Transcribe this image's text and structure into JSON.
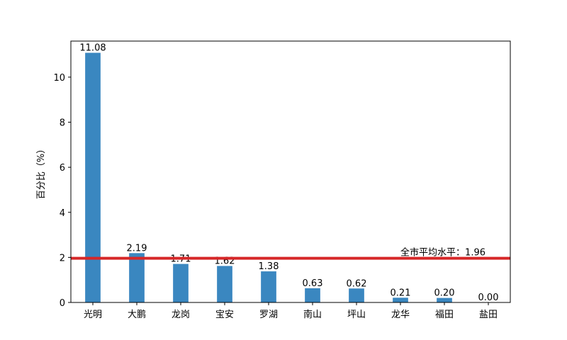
{
  "chart_data": {
    "type": "bar",
    "title": "",
    "xlabel": "",
    "ylabel": "百分比（%）",
    "categories": [
      "光明",
      "大鹏",
      "龙岗",
      "宝安",
      "罗湖",
      "南山",
      "坪山",
      "龙华",
      "福田",
      "盐田"
    ],
    "values": [
      11.08,
      2.19,
      1.71,
      1.62,
      1.38,
      0.63,
      0.62,
      0.21,
      0.2,
      0.0
    ],
    "value_labels": [
      "11.08",
      "2.19",
      "1.71",
      "1.62",
      "1.38",
      "0.63",
      "0.62",
      "0.21",
      "0.20",
      "0.00"
    ],
    "ylim": [
      0,
      11.6
    ],
    "yticks": [
      0,
      2,
      4,
      6,
      8,
      10
    ],
    "grid": false,
    "bar_color": "#3a87c0",
    "reference_line": {
      "value": 1.96,
      "label": "全市平均水平：1.96",
      "color": "#d62728"
    }
  }
}
